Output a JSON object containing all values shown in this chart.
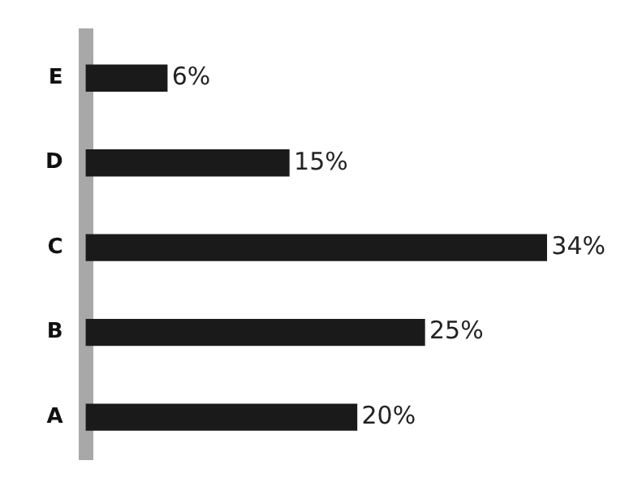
{
  "chart_data": {
    "type": "bar",
    "orientation": "horizontal",
    "categories": [
      "E",
      "D",
      "C",
      "B",
      "A"
    ],
    "values": [
      6,
      15,
      34,
      25,
      20
    ],
    "color": "#1a1a1a",
    "value_labels": [
      "6%",
      "15%",
      "34%",
      "25%",
      "20%"
    ],
    "tick_labels": "y",
    "grid": false,
    "legend": false
  }
}
